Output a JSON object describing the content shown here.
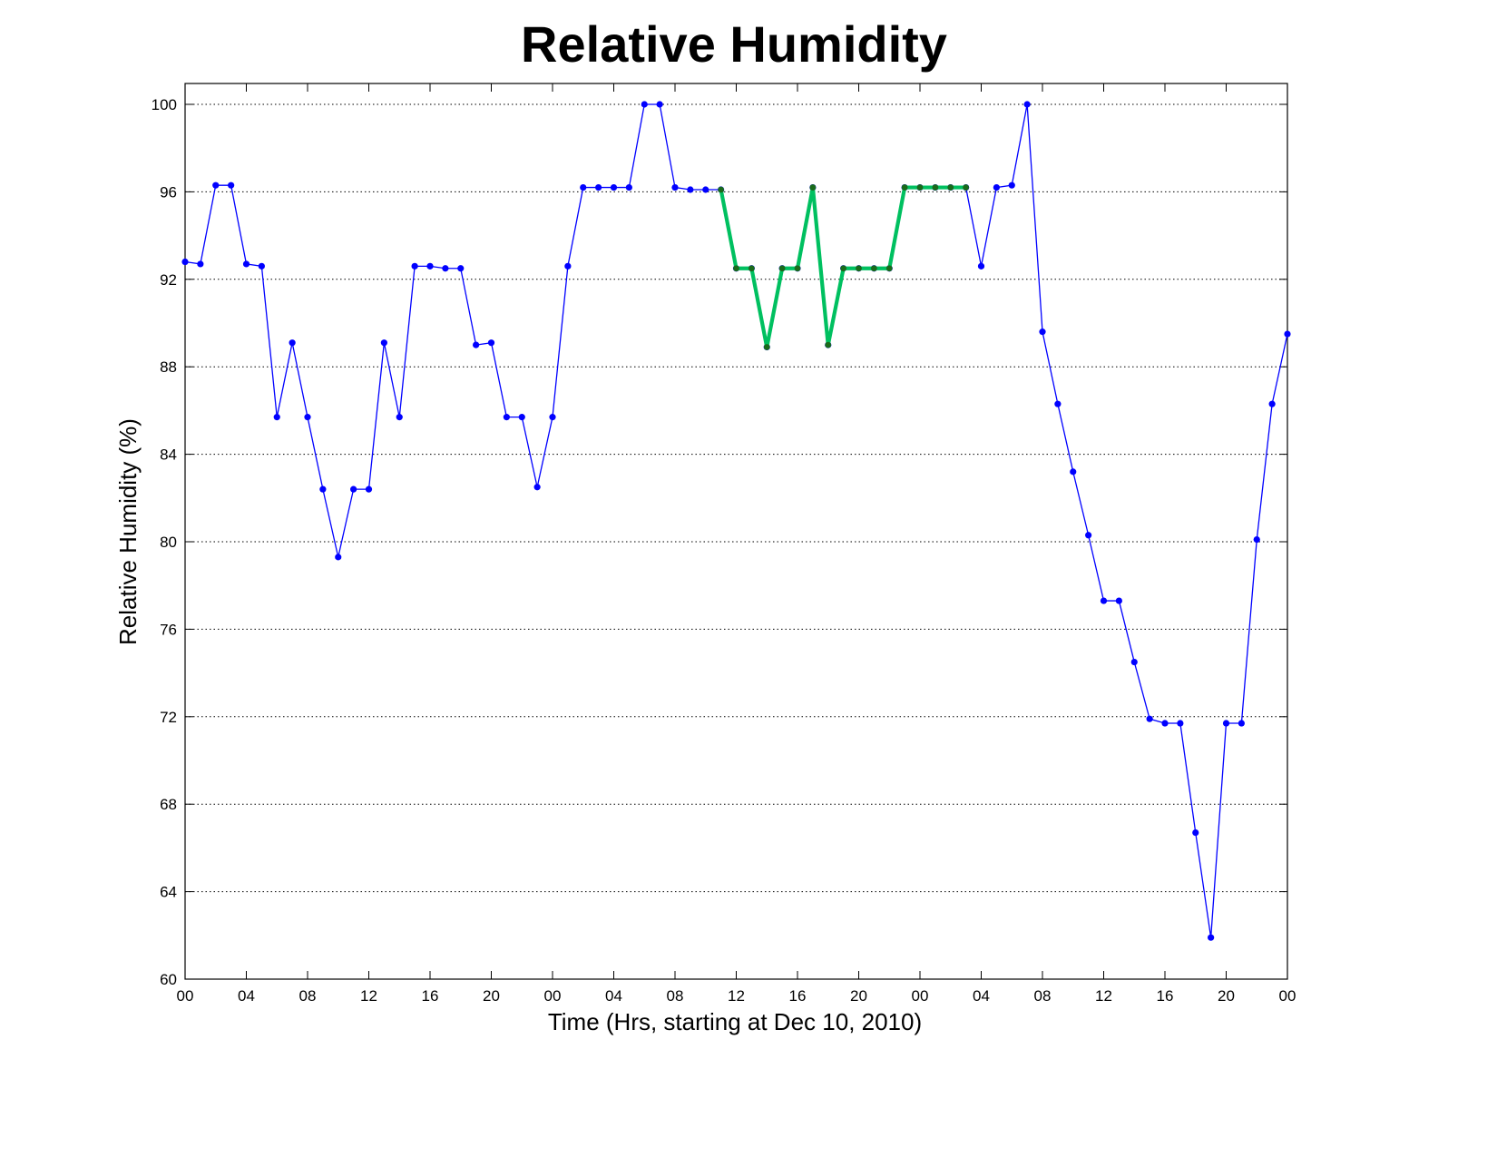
{
  "chart_data": {
    "type": "line",
    "title": "Relative Humidity",
    "xlabel": "Time (Hrs, starting at Dec 10, 2010)",
    "ylabel": "Relative Humidity (%)",
    "xlim": [
      0,
      72
    ],
    "ylim": [
      60,
      100
    ],
    "xticks": [
      0,
      4,
      8,
      12,
      16,
      20,
      24,
      28,
      32,
      36,
      40,
      44,
      48,
      52,
      56,
      60,
      64,
      68,
      72
    ],
    "xtick_labels": [
      "00",
      "04",
      "08",
      "12",
      "16",
      "20",
      "00",
      "04",
      "08",
      "12",
      "16",
      "20",
      "00",
      "04",
      "08",
      "12",
      "16",
      "20",
      "00"
    ],
    "yticks": [
      60,
      64,
      68,
      72,
      76,
      80,
      84,
      88,
      92,
      96,
      100
    ],
    "grid": true,
    "colors": {
      "main": "#0000ff",
      "highlight": "#00c060",
      "highlight_marker": "#1a6b1a"
    },
    "series": [
      {
        "x": [
          0,
          1,
          2,
          3,
          4,
          5,
          6,
          7,
          8,
          9,
          10,
          11,
          12,
          13,
          14,
          15,
          16,
          17,
          18,
          19,
          20,
          21,
          22,
          23,
          24,
          25,
          26,
          27,
          28,
          29,
          30,
          31,
          32,
          33,
          34,
          35,
          36,
          37,
          38,
          39,
          40,
          41,
          42,
          43,
          44,
          45,
          46,
          47,
          48,
          49,
          50,
          51,
          52,
          53,
          54,
          55,
          56,
          57,
          58,
          59,
          60,
          61,
          62,
          63,
          64,
          65,
          66,
          67,
          68,
          69,
          70,
          71,
          72
        ],
        "y": [
          92.8,
          92.7,
          96.3,
          96.3,
          92.7,
          92.6,
          85.7,
          89.1,
          85.7,
          82.4,
          79.3,
          82.4,
          82.4,
          89.1,
          85.7,
          92.6,
          92.6,
          92.5,
          92.5,
          89.0,
          89.1,
          85.7,
          85.7,
          82.5,
          85.7,
          92.6,
          96.2,
          96.2,
          96.2,
          96.2,
          100,
          100,
          96.2,
          96.1,
          96.1,
          96.1,
          92.5,
          92.5,
          88.9,
          92.5,
          92.5,
          96.2,
          89.0,
          92.5,
          92.5,
          92.5,
          92.5,
          96.2,
          96.2,
          96.2,
          96.2,
          96.2,
          92.6,
          96.2,
          96.3,
          100,
          89.6,
          86.3,
          83.2,
          80.3,
          77.3,
          77.3,
          74.5,
          71.9,
          71.7,
          71.7,
          66.7,
          61.9,
          71.7,
          71.7,
          80.1,
          86.3,
          89.5
        ]
      },
      {
        "x": [
          35,
          36,
          37,
          38,
          39,
          40,
          41,
          42,
          43,
          44,
          45,
          46,
          47,
          48,
          49,
          50,
          51
        ],
        "y": [
          96.1,
          92.5,
          92.5,
          88.9,
          92.5,
          92.5,
          96.2,
          89.0,
          92.5,
          92.5,
          92.5,
          92.5,
          96.2,
          96.2,
          96.2,
          96.2,
          96.2
        ]
      }
    ]
  }
}
